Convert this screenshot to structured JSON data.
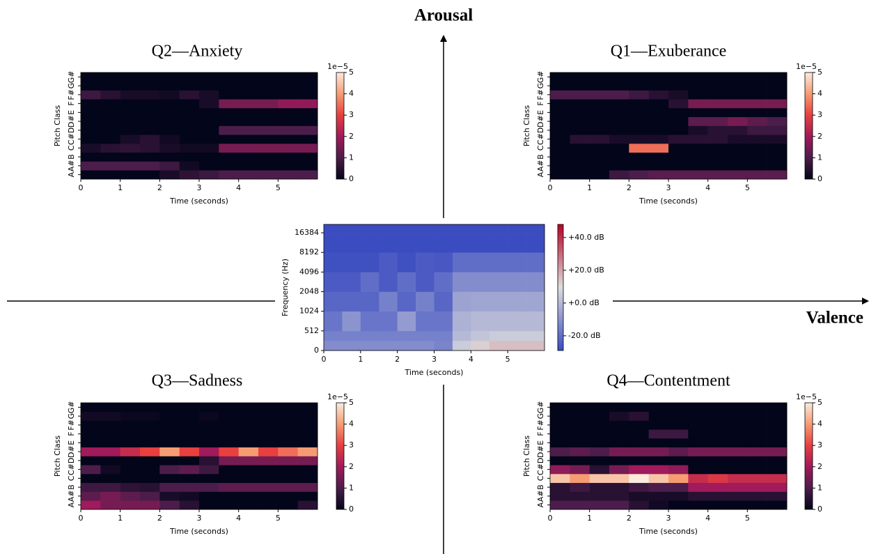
{
  "chart_data": [
    {
      "type": "quadrant-axes",
      "y_label": "Arousal",
      "x_label": "Valence"
    },
    {
      "type": "heatmap",
      "title": "Q2—Anxiety",
      "xlabel": "Time (seconds)",
      "ylabel": "Pitch Class",
      "xlim": [
        0,
        6
      ],
      "xticks": [
        0,
        1,
        2,
        3,
        4,
        5
      ],
      "bins": [
        0,
        0.5,
        1,
        1.5,
        2,
        2.5,
        3,
        3.5,
        4,
        4.5,
        5,
        5.5,
        6
      ],
      "rows": [
        "A",
        "A#",
        "B",
        "C",
        "C#",
        "D",
        "D#",
        "E",
        "F",
        "F#",
        "G",
        "G#"
      ],
      "values": [
        [
          0,
          0,
          0,
          0,
          0.3,
          0.6,
          0.8,
          1,
          1,
          1,
          1,
          1
        ],
        [
          1,
          1,
          1,
          1,
          0.8,
          0.2,
          0,
          0,
          0,
          0,
          0,
          0
        ],
        [
          0,
          0,
          0,
          0,
          0,
          0,
          0,
          0,
          0,
          0,
          0,
          0
        ],
        [
          0.3,
          0.5,
          0.6,
          0.5,
          0.3,
          0.2,
          0.2,
          1.5,
          1.5,
          1.5,
          1.5,
          1.5
        ],
        [
          0,
          0,
          0.3,
          0.5,
          0.2,
          0,
          0,
          0,
          0,
          0,
          0,
          0
        ],
        [
          0,
          0,
          0,
          0,
          0,
          0,
          0,
          1,
          1,
          1,
          1,
          1
        ],
        [
          0,
          0,
          0,
          0,
          0,
          0,
          0,
          0,
          0,
          0,
          0,
          0
        ],
        [
          0,
          0,
          0,
          0,
          0,
          0,
          0,
          0,
          0,
          0,
          0,
          0
        ],
        [
          0,
          0,
          0,
          0,
          0,
          0,
          0.3,
          1.5,
          1.5,
          1.5,
          1.8,
          1.8
        ],
        [
          0.8,
          0.5,
          0.3,
          0.3,
          0.2,
          0.5,
          0.3,
          0,
          0,
          0,
          0,
          0
        ],
        [
          0,
          0,
          0,
          0,
          0,
          0,
          0,
          0,
          0,
          0,
          0,
          0
        ],
        [
          0,
          0,
          0,
          0,
          0,
          0,
          0,
          0,
          0,
          0,
          0,
          0
        ]
      ],
      "clim": [
        0,
        5
      ],
      "cticks": [
        0,
        1,
        2,
        3,
        4,
        5
      ],
      "colorbar_label": "1e−5",
      "colors": [
        "#03051a",
        "#4c1d4b",
        "#a11a5b",
        "#e83f3f",
        "#f69c73",
        "#faebdd"
      ]
    },
    {
      "type": "heatmap",
      "title": "Q1—Exuberance",
      "xlabel": "Time (seconds)",
      "ylabel": "Pitch Class",
      "xlim": [
        0,
        6
      ],
      "xticks": [
        0,
        1,
        2,
        3,
        4,
        5
      ],
      "bins": [
        0,
        0.5,
        1,
        1.5,
        2,
        2.5,
        3,
        3.5,
        4,
        4.5,
        5,
        5.5,
        6
      ],
      "rows": [
        "A",
        "A#",
        "B",
        "C",
        "C#",
        "D",
        "D#",
        "E",
        "F",
        "F#",
        "G",
        "G#"
      ],
      "values": [
        [
          0,
          0,
          0,
          0.8,
          1,
          1.2,
          1.2,
          1.2,
          1.2,
          1.2,
          1.2,
          1.2
        ],
        [
          0,
          0,
          0,
          0,
          0,
          0,
          0,
          0,
          0,
          0,
          0,
          0
        ],
        [
          0,
          0,
          0,
          0,
          0,
          0,
          0,
          0,
          0,
          0,
          0,
          0
        ],
        [
          0,
          0,
          0,
          0,
          3.5,
          3.5,
          0,
          0,
          0,
          0,
          0,
          0
        ],
        [
          0,
          0.5,
          0.5,
          0.3,
          0.3,
          0.3,
          0.5,
          0.5,
          0.5,
          0.3,
          0.3,
          0.3
        ],
        [
          0,
          0,
          0,
          0,
          0,
          0,
          0,
          0.3,
          0.5,
          0.5,
          0.8,
          0.8
        ],
        [
          0,
          0,
          0,
          0,
          0,
          0,
          0,
          1.2,
          1.2,
          1.5,
          1.2,
          1
        ],
        [
          0,
          0,
          0,
          0,
          0,
          0,
          0,
          0,
          0,
          0,
          0,
          0
        ],
        [
          0,
          0,
          0,
          0,
          0,
          0,
          0.5,
          1.5,
          1.5,
          1.5,
          1.5,
          1.5
        ],
        [
          1,
          1,
          1,
          1,
          0.8,
          0.5,
          0.3,
          0,
          0,
          0,
          0,
          0
        ],
        [
          0,
          0,
          0,
          0,
          0,
          0,
          0,
          0,
          0,
          0,
          0,
          0
        ],
        [
          0,
          0,
          0,
          0,
          0,
          0,
          0,
          0,
          0,
          0,
          0,
          0
        ]
      ],
      "clim": [
        0,
        5
      ],
      "cticks": [
        0,
        1,
        2,
        3,
        4,
        5
      ],
      "colorbar_label": "1e−5",
      "colors": [
        "#03051a",
        "#4c1d4b",
        "#a11a5b",
        "#e83f3f",
        "#f69c73",
        "#faebdd"
      ]
    },
    {
      "type": "heatmap",
      "title": "Q3—Sadness",
      "xlabel": "Time (seconds)",
      "ylabel": "Pitch Class",
      "xlim": [
        0,
        6
      ],
      "xticks": [
        0,
        1,
        2,
        3,
        4,
        5
      ],
      "bins": [
        0,
        0.5,
        1,
        1.5,
        2,
        2.5,
        3,
        3.5,
        4,
        4.5,
        5,
        5.5,
        6
      ],
      "rows": [
        "A",
        "A#",
        "B",
        "C",
        "C#",
        "D",
        "D#",
        "E",
        "F",
        "F#",
        "G",
        "G#"
      ],
      "values": [
        [
          2,
          1.5,
          1.5,
          1.5,
          1,
          0.5,
          0,
          0,
          0,
          0,
          0,
          0.5
        ],
        [
          1.2,
          1.5,
          1.2,
          1,
          0.3,
          0.2,
          0,
          0,
          0,
          0,
          0,
          0
        ],
        [
          0.8,
          0.8,
          0.6,
          0.5,
          1,
          1,
          1,
          1.2,
          1.2,
          1.2,
          1.2,
          1.2
        ],
        [
          0,
          0,
          0,
          0,
          0,
          0,
          0,
          0,
          0,
          0,
          0,
          0
        ],
        [
          1,
          0.2,
          0,
          0,
          1,
          1.2,
          0.8,
          0,
          0,
          0,
          0,
          0
        ],
        [
          0,
          0,
          0,
          0,
          0,
          0,
          0.5,
          1.5,
          1.5,
          1.5,
          1.5,
          1.5
        ],
        [
          2,
          2,
          2.5,
          3,
          4,
          3,
          2,
          3,
          4,
          3,
          3.5,
          4
        ],
        [
          0,
          0,
          0,
          0,
          0,
          0,
          0,
          0,
          0,
          0,
          0,
          0
        ],
        [
          0,
          0,
          0,
          0,
          0,
          0,
          0,
          0,
          0,
          0,
          0,
          0
        ],
        [
          0,
          0,
          0,
          0,
          0,
          0,
          0,
          0,
          0,
          0,
          0,
          0
        ],
        [
          0.2,
          0.2,
          0.1,
          0.1,
          0,
          0,
          0.1,
          0,
          0,
          0,
          0,
          0
        ],
        [
          0,
          0,
          0,
          0,
          0,
          0,
          0,
          0,
          0,
          0,
          0,
          0
        ]
      ],
      "clim": [
        0,
        5
      ],
      "cticks": [
        0,
        1,
        2,
        3,
        4,
        5
      ],
      "colorbar_label": "1e−5",
      "colors": [
        "#03051a",
        "#4c1d4b",
        "#a11a5b",
        "#e83f3f",
        "#f69c73",
        "#faebdd"
      ]
    },
    {
      "type": "heatmap",
      "title": "Q4—Contentment",
      "xlabel": "Time (seconds)",
      "ylabel": "Pitch Class",
      "xlim": [
        0,
        6
      ],
      "xticks": [
        0,
        1,
        2,
        3,
        4,
        5
      ],
      "bins": [
        0,
        0.5,
        1,
        1.5,
        2,
        2.5,
        3,
        3.5,
        4,
        4.5,
        5,
        5.5,
        6
      ],
      "rows": [
        "A",
        "A#",
        "B",
        "C",
        "C#",
        "D",
        "D#",
        "E",
        "F",
        "F#",
        "G",
        "G#"
      ],
      "values": [
        [
          1,
          1,
          1,
          1,
          0.5,
          0.2,
          0,
          0,
          0,
          0,
          0,
          0
        ],
        [
          0.5,
          0.5,
          0.5,
          0.5,
          0.3,
          0.3,
          0.3,
          0.5,
          0.5,
          0.5,
          0.5,
          0.5
        ],
        [
          0.5,
          0.8,
          0.5,
          0.5,
          0.8,
          1,
          1,
          2,
          2,
          2,
          2,
          2
        ],
        [
          4.5,
          4,
          4.5,
          4.5,
          5,
          4.5,
          4,
          2.5,
          2.8,
          2.5,
          2.5,
          2.5
        ],
        [
          1.8,
          1.5,
          0.5,
          1.5,
          2,
          2,
          1.8,
          0,
          0,
          0,
          0,
          0
        ],
        [
          0,
          0,
          0,
          0,
          0,
          0,
          0,
          0,
          0,
          0,
          0,
          0
        ],
        [
          1,
          1.2,
          1,
          1.5,
          1.5,
          1.5,
          1.2,
          1.5,
          1.5,
          1.5,
          1.5,
          1.5
        ],
        [
          0,
          0,
          0,
          0,
          0,
          0,
          0,
          0,
          0,
          0,
          0,
          0
        ],
        [
          0,
          0,
          0,
          0,
          0,
          0.8,
          0.8,
          0,
          0,
          0,
          0,
          0
        ],
        [
          0,
          0,
          0,
          0,
          0,
          0,
          0,
          0,
          0,
          0,
          0,
          0
        ],
        [
          0,
          0,
          0,
          0.3,
          0.5,
          0,
          0,
          0,
          0,
          0,
          0,
          0
        ],
        [
          0,
          0,
          0,
          0,
          0,
          0,
          0,
          0,
          0,
          0,
          0,
          0
        ]
      ],
      "clim": [
        0,
        5
      ],
      "cticks": [
        0,
        1,
        2,
        3,
        4,
        5
      ],
      "colorbar_label": "1e−5",
      "colors": [
        "#03051a",
        "#4c1d4b",
        "#a11a5b",
        "#e83f3f",
        "#f69c73",
        "#faebdd"
      ]
    },
    {
      "type": "spectrogram",
      "xlabel": "Time (seconds)",
      "ylabel": "Frequency (Hz)",
      "xlim": [
        0,
        6
      ],
      "xticks": [
        0,
        1,
        2,
        3,
        4,
        5
      ],
      "bins": [
        0,
        0.5,
        1,
        1.5,
        2,
        2.5,
        3,
        3.5,
        4,
        4.5,
        5,
        5.5,
        6
      ],
      "ylim": [
        0,
        22050
      ],
      "yscale": "symlog",
      "linthresh": 512,
      "yticks": [
        0,
        512,
        1024,
        2048,
        4096,
        8192,
        16384
      ],
      "freq_bins": [
        0,
        256,
        512,
        1024,
        2048,
        4096,
        8192,
        16384,
        22050
      ],
      "values": [
        [
          -12,
          -12,
          -12,
          -12,
          -12,
          -12,
          -14,
          5,
          12,
          15,
          15,
          15
        ],
        [
          -15,
          -15,
          -15,
          -15,
          -15,
          -15,
          -15,
          0,
          3,
          5,
          5,
          5
        ],
        [
          -18,
          -10,
          -18,
          -18,
          -8,
          -18,
          -18,
          -2,
          0,
          0,
          0,
          0
        ],
        [
          -22,
          -22,
          -22,
          -15,
          -22,
          -15,
          -22,
          -6,
          -5,
          -5,
          -5,
          -5
        ],
        [
          -25,
          -25,
          -20,
          -25,
          -20,
          -25,
          -20,
          -12,
          -12,
          -12,
          -12,
          -12
        ],
        [
          -28,
          -28,
          -28,
          -25,
          -28,
          -25,
          -26,
          -20,
          -20,
          -20,
          -20,
          -20
        ],
        [
          -29,
          -29,
          -29,
          -29,
          -29,
          -29,
          -29,
          -29,
          -29,
          -29,
          -29,
          -29
        ],
        [
          -29,
          -29,
          -29,
          -29,
          -29,
          -29,
          -29,
          -29,
          -29,
          -29,
          -29,
          -29
        ]
      ],
      "clim": [
        -29,
        48
      ],
      "cticks": [
        {
          "value": 40,
          "label": "+40.0 dB"
        },
        {
          "value": 20,
          "label": "+20.0 dB"
        },
        {
          "value": 0,
          "label": "+0.0 dB"
        },
        {
          "value": -20,
          "label": "-20.0 dB"
        }
      ],
      "colors": [
        "#3b4cc0",
        "#dddddd",
        "#b40426"
      ]
    }
  ]
}
